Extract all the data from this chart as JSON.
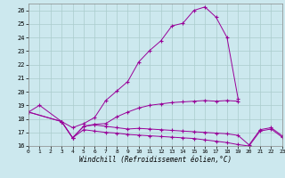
{
  "background_color": "#cce8ee",
  "grid_color": "#aacccc",
  "line_color": "#990099",
  "xlim": [
    0,
    23
  ],
  "ylim": [
    16,
    26.5
  ],
  "yticks": [
    16,
    17,
    18,
    19,
    20,
    21,
    22,
    23,
    24,
    25,
    26
  ],
  "xticks": [
    0,
    1,
    2,
    3,
    4,
    5,
    6,
    7,
    8,
    9,
    10,
    11,
    12,
    13,
    14,
    15,
    16,
    17,
    18,
    19,
    20,
    21,
    22,
    23
  ],
  "xlabel": "Windchill (Refroidissement éolien,°C)",
  "curves": [
    {
      "x": [
        0,
        1,
        3,
        4,
        5,
        6,
        7,
        8,
        9,
        10,
        11,
        12,
        13,
        14,
        15,
        16,
        17,
        18,
        19
      ],
      "y": [
        18.5,
        19.0,
        17.8,
        17.35,
        17.65,
        18.1,
        19.35,
        20.05,
        20.75,
        22.2,
        23.05,
        23.75,
        24.85,
        25.05,
        26.0,
        26.25,
        25.5,
        24.0,
        19.5
      ]
    },
    {
      "x": [
        0,
        3,
        4,
        5,
        6,
        7,
        8,
        9,
        10,
        11,
        12,
        13,
        14,
        15,
        16,
        17,
        18,
        19
      ],
      "y": [
        18.5,
        17.8,
        16.6,
        17.45,
        17.6,
        17.65,
        18.15,
        18.5,
        18.8,
        19.0,
        19.1,
        19.2,
        19.25,
        19.3,
        19.35,
        19.3,
        19.35,
        19.3
      ]
    },
    {
      "x": [
        0,
        3,
        4,
        5,
        6,
        7,
        8,
        9,
        10,
        11,
        12,
        13,
        14,
        15,
        16,
        17,
        18,
        19,
        20,
        21,
        22,
        23
      ],
      "y": [
        18.5,
        17.8,
        16.6,
        17.45,
        17.55,
        17.45,
        17.35,
        17.25,
        17.3,
        17.25,
        17.2,
        17.15,
        17.1,
        17.05,
        17.0,
        16.95,
        16.9,
        16.78,
        16.08,
        17.2,
        17.35,
        16.75
      ]
    },
    {
      "x": [
        3,
        4,
        5,
        6,
        7,
        8,
        9,
        10,
        11,
        12,
        13,
        14,
        15,
        16,
        17,
        18,
        19,
        20,
        21,
        22,
        23
      ],
      "y": [
        17.8,
        16.6,
        17.2,
        17.1,
        17.0,
        16.95,
        16.85,
        16.8,
        16.75,
        16.7,
        16.65,
        16.6,
        16.55,
        16.45,
        16.35,
        16.25,
        16.1,
        16.0,
        17.1,
        17.25,
        16.65
      ]
    }
  ]
}
